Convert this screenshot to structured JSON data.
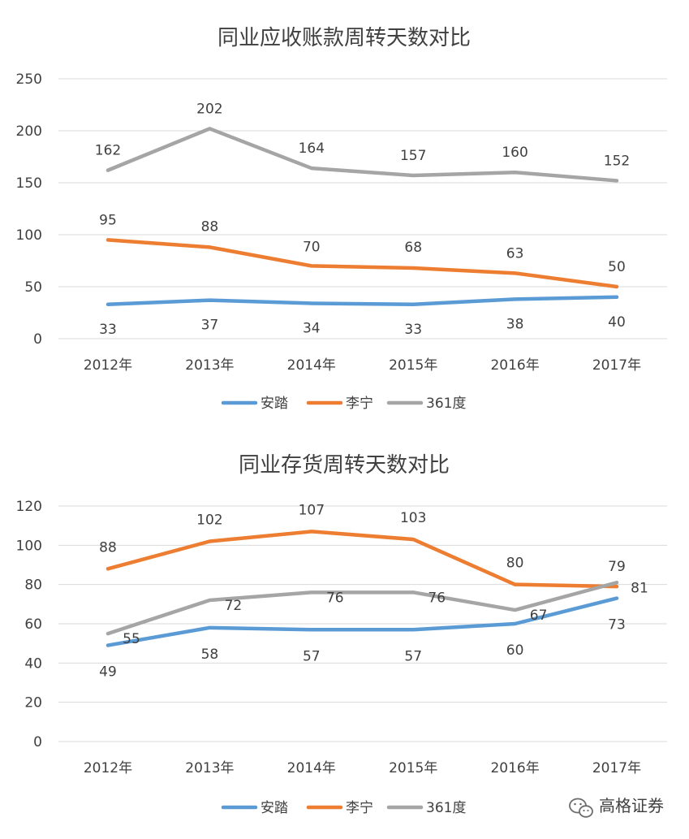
{
  "chart_data": [
    {
      "type": "line",
      "title": "同业应收账款周转天数对比",
      "categories": [
        "2012年",
        "2013年",
        "2014年",
        "2015年",
        "2016年",
        "2017年"
      ],
      "ylim": [
        0,
        250
      ],
      "yticks": [
        "0",
        "50",
        "100",
        "150",
        "200",
        "250"
      ],
      "grid": true,
      "legend": "bottom",
      "series": [
        {
          "name": "安踏",
          "color": "#5b9bd5",
          "values": [
            33,
            37,
            34,
            33,
            38,
            40
          ]
        },
        {
          "name": "李宁",
          "color": "#ed7d31",
          "values": [
            95,
            88,
            70,
            68,
            63,
            50
          ]
        },
        {
          "name": "361度",
          "color": "#a5a5a5",
          "values": [
            162,
            202,
            164,
            157,
            160,
            152
          ]
        }
      ]
    },
    {
      "type": "line",
      "title": "同业存货周转天数对比",
      "categories": [
        "2012年",
        "2013年",
        "2014年",
        "2015年",
        "2016年",
        "2017年"
      ],
      "ylim": [
        0,
        120
      ],
      "yticks": [
        "0",
        "20",
        "40",
        "60",
        "80",
        "100",
        "120"
      ],
      "grid": true,
      "legend": "bottom",
      "series": [
        {
          "name": "安踏",
          "color": "#5b9bd5",
          "values": [
            49,
            58,
            57,
            57,
            60,
            73
          ]
        },
        {
          "name": "李宁",
          "color": "#ed7d31",
          "values": [
            88,
            102,
            107,
            103,
            80,
            79
          ]
        },
        {
          "name": "361度",
          "color": "#a5a5a5",
          "values": [
            55,
            72,
            76,
            76,
            67,
            81
          ]
        }
      ]
    }
  ],
  "watermark": {
    "text": "高格证券",
    "icon": "wechat-icon"
  }
}
